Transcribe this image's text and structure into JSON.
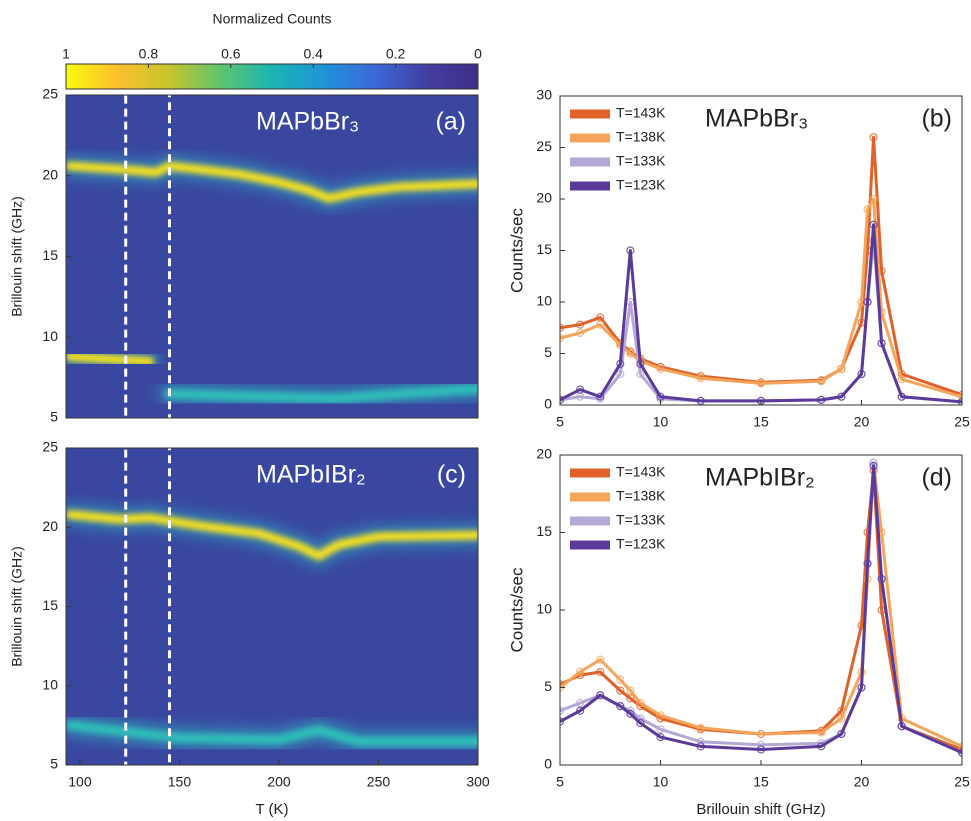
{
  "chart_data": [
    {
      "type": "colorbar",
      "title": "Normalized Counts",
      "xlim": [
        1,
        0
      ],
      "xticks": [
        1,
        0.8,
        0.6,
        0.4,
        0.2,
        0
      ],
      "colors": [
        "#f9fb0e",
        "#fbbf2d",
        "#c7c42d",
        "#5fc46e",
        "#1bb5b1",
        "#1f94d8",
        "#3d68d9",
        "#413ea1",
        "#3e2f8a"
      ]
    },
    {
      "type": "heatmap",
      "annotation": "MAPbBr₃",
      "panel_label": "(a)",
      "ylabel": "Brillouin shift (GHz)",
      "xlim": [
        93,
        300
      ],
      "ylim": [
        5,
        25
      ],
      "yticks": [
        5,
        10,
        15,
        20,
        25
      ],
      "highlight": [
        123,
        145
      ],
      "background": "#3a47a0",
      "series": [
        {
          "color": "#f7e01c",
          "x": [
            95,
            120,
            130,
            138,
            145,
            160,
            180,
            200,
            215,
            225,
            240,
            260,
            300
          ],
          "values": [
            20.6,
            20.4,
            20.3,
            20.2,
            20.6,
            20.4,
            20.1,
            19.6,
            19.1,
            18.6,
            19,
            19.3,
            19.5
          ]
        },
        {
          "color": "#f7e01c",
          "x": [
            95,
            135
          ],
          "values": [
            8.8,
            8.5
          ]
        },
        {
          "color": "#2fc0b8",
          "x": [
            145,
            170,
            200,
            228,
            260,
            300
          ],
          "values": [
            6.5,
            6.4,
            6.3,
            6.2,
            6.5,
            6.8
          ]
        },
        {
          "color": "#2fc0b8",
          "x": [
            225,
            225
          ],
          "values": [
            6,
            18
          ]
        }
      ]
    },
    {
      "type": "line",
      "annotation": "MAPbBr₃",
      "panel_label": "(b)",
      "ylabel": "Counts/sec",
      "legend": "upper left",
      "xlim": [
        5,
        25
      ],
      "xticks": [
        5,
        10,
        15,
        20,
        25
      ],
      "ylim": [
        0,
        30
      ],
      "yticks": [
        0,
        5,
        10,
        15,
        20,
        25,
        30
      ],
      "x": [
        5,
        6,
        7,
        8,
        8.5,
        9,
        10,
        12,
        15,
        18,
        19,
        20,
        20.3,
        20.6,
        21,
        22,
        25
      ],
      "series": [
        {
          "name": "T=143K",
          "color": "#e0622a",
          "values": [
            7.5,
            7.8,
            8.5,
            6,
            5.2,
            4.5,
            3.7,
            2.8,
            2.2,
            2.4,
            3.5,
            8,
            15,
            26,
            13,
            3,
            1
          ]
        },
        {
          "name": "T=138K",
          "color": "#f5a55a",
          "values": [
            6.5,
            7,
            7.8,
            5.8,
            5,
            4.3,
            3.5,
            2.6,
            2.1,
            2.3,
            3.5,
            10,
            19,
            20,
            9,
            2.5,
            0.8
          ]
        },
        {
          "name": "T=133K",
          "color": "#b3a8d6",
          "values": [
            0.5,
            0.8,
            0.6,
            3,
            10,
            3,
            0.6,
            0.4,
            0.4,
            0.5,
            0.8,
            3,
            10,
            16,
            6,
            0.8,
            0.3
          ]
        },
        {
          "name": "T=123K",
          "color": "#5b3a9a",
          "values": [
            0.5,
            1.5,
            0.8,
            4,
            15,
            4,
            0.8,
            0.4,
            0.4,
            0.5,
            0.8,
            3,
            10,
            17.5,
            6,
            0.8,
            0.3
          ]
        }
      ]
    },
    {
      "type": "heatmap",
      "annotation": "MAPbIBr₂",
      "panel_label": "(c)",
      "ylabel": "Brillouin shift (GHz)",
      "xlabel": "T (K)",
      "xlim": [
        93,
        300
      ],
      "xticks": [
        100,
        150,
        200,
        250,
        300
      ],
      "ylim": [
        5,
        25
      ],
      "yticks": [
        5,
        10,
        15,
        20,
        25
      ],
      "highlight": [
        123,
        145
      ],
      "background": "#3a47a0",
      "series": [
        {
          "color": "#f7e01c",
          "x": [
            95,
            120,
            135,
            160,
            190,
            210,
            220,
            230,
            250,
            300
          ],
          "values": [
            20.8,
            20.5,
            20.6,
            20.1,
            19.6,
            18.8,
            18.2,
            18.9,
            19.4,
            19.5
          ]
        },
        {
          "color": "#2fc0b8",
          "x": [
            95,
            130,
            150,
            200,
            220,
            240,
            300
          ],
          "values": [
            7.5,
            7,
            6.7,
            6.6,
            7.2,
            6.5,
            6.5
          ]
        }
      ]
    },
    {
      "type": "line",
      "annotation": "MAPbIBr₂",
      "panel_label": "(d)",
      "ylabel": "Counts/sec",
      "xlabel": "Brillouin shift (GHz)",
      "legend": "upper left",
      "xlim": [
        5,
        25
      ],
      "xticks": [
        5,
        10,
        15,
        20,
        25
      ],
      "ylim": [
        0,
        20
      ],
      "yticks": [
        0,
        5,
        10,
        15,
        20
      ],
      "x": [
        5,
        6,
        7,
        8,
        8.5,
        9,
        10,
        12,
        15,
        18,
        19,
        20,
        20.3,
        20.6,
        21,
        22,
        25
      ],
      "series": [
        {
          "name": "T=143K",
          "color": "#e0622a",
          "values": [
            5.2,
            5.8,
            6,
            4.8,
            4.3,
            3.8,
            3,
            2.3,
            2,
            2.2,
            3.5,
            9,
            15,
            19,
            10,
            2.5,
            1
          ]
        },
        {
          "name": "T=138K",
          "color": "#f5a55a",
          "values": [
            5,
            6,
            6.8,
            5.5,
            4.8,
            4,
            3.2,
            2.4,
            2,
            2.1,
            3,
            6,
            12,
            19.5,
            15,
            3,
            1.2
          ]
        },
        {
          "name": "T=133K",
          "color": "#b3a8d6",
          "values": [
            3.5,
            4,
            4.5,
            3.8,
            3.5,
            3,
            2.3,
            1.5,
            1.3,
            1.4,
            2,
            5,
            13,
            19.5,
            12,
            2.5,
            0.8
          ]
        },
        {
          "name": "T=123K",
          "color": "#5b3a9a",
          "values": [
            2.8,
            3.5,
            4.5,
            3.8,
            3.3,
            2.7,
            1.8,
            1.2,
            1,
            1.2,
            2,
            5,
            13,
            19.3,
            12,
            2.5,
            0.8
          ]
        }
      ]
    }
  ]
}
